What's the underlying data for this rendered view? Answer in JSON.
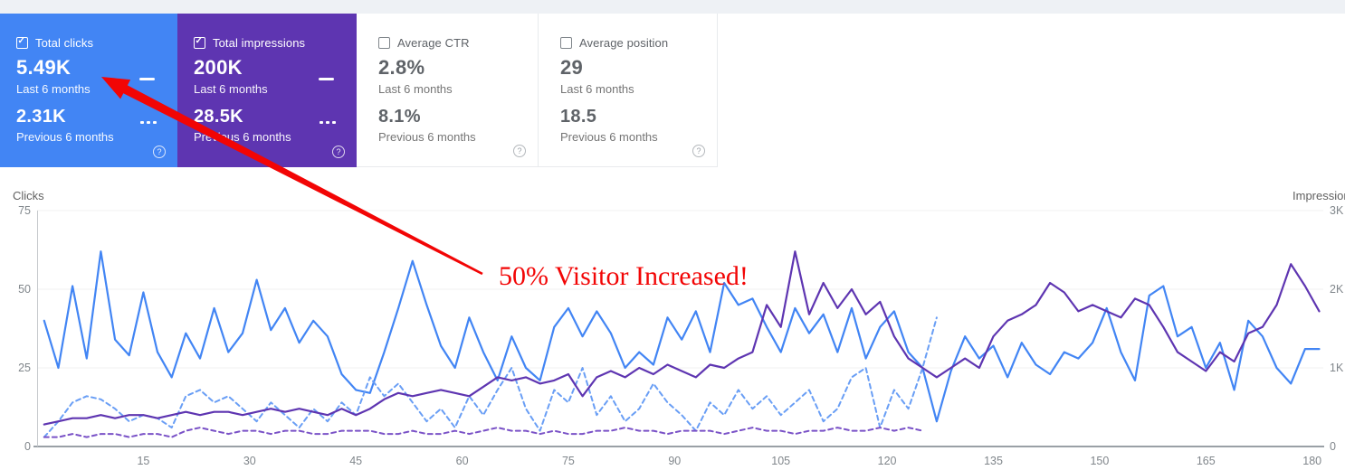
{
  "cards": [
    {
      "label": "Total clicks",
      "value_current": "5.49K",
      "caption_current": "Last 6 months",
      "value_previous": "2.31K",
      "caption_previous": "Previous 6 months",
      "selected": true,
      "bg": "#4285f4",
      "help_label": "?"
    },
    {
      "label": "Total impressions",
      "value_current": "200K",
      "caption_current": "Last 6 months",
      "value_previous": "28.5K",
      "caption_previous": "Previous 6 months",
      "selected": true,
      "bg": "#5e35b1",
      "help_label": "?"
    },
    {
      "label": "Average CTR",
      "value_current": "2.8%",
      "caption_current": "Last 6 months",
      "value_previous": "8.1%",
      "caption_previous": "Previous 6 months",
      "selected": false,
      "bg": "#ffffff",
      "help_label": "?"
    },
    {
      "label": "Average position",
      "value_current": "29",
      "caption_current": "Last 6 months",
      "value_previous": "18.5",
      "caption_previous": "Previous 6 months",
      "selected": false,
      "bg": "#ffffff",
      "help_label": "?"
    }
  ],
  "annotation": {
    "text": "50% Visitor Increased!",
    "color": "#f20505"
  },
  "chart_data": {
    "type": "line",
    "title": "",
    "grid": true,
    "x_axis": {
      "start": 1,
      "step": 2,
      "ticks": [
        15,
        30,
        45,
        60,
        75,
        90,
        105,
        120,
        135,
        150,
        165,
        180
      ]
    },
    "left_axis": {
      "label": "Clicks",
      "range": [
        0,
        75
      ],
      "ticks": [
        0,
        25,
        50,
        75
      ],
      "tick_labels": [
        "0",
        "25",
        "50",
        "75"
      ]
    },
    "right_axis": {
      "label": "Impressions",
      "range": [
        0,
        3000
      ],
      "ticks": [
        0,
        1000,
        2000,
        3000
      ],
      "tick_labels": [
        "0",
        "1K",
        "2K",
        "3K"
      ]
    },
    "series": [
      {
        "id": "clicks-current",
        "name": "Clicks - Last 6 months",
        "axis": "left",
        "style": "solid",
        "color": "#4285f4",
        "values": [
          40,
          25,
          51,
          28,
          62,
          34,
          29,
          49,
          30,
          22,
          36,
          28,
          44,
          30,
          36,
          53,
          37,
          44,
          33,
          40,
          35,
          23,
          18,
          17,
          30,
          44,
          59,
          45,
          32,
          25,
          41,
          30,
          21,
          35,
          25,
          21,
          38,
          44,
          35,
          43,
          36,
          25,
          30,
          26,
          41,
          34,
          43,
          30,
          52,
          45,
          47,
          38,
          30,
          44,
          36,
          42,
          30,
          44,
          28,
          38,
          43,
          30,
          25,
          8,
          24,
          35,
          28,
          32,
          22,
          33,
          26,
          23,
          30,
          28,
          33,
          44,
          30,
          21,
          48,
          51,
          35,
          38,
          25,
          33,
          18,
          40,
          35,
          25,
          20,
          31,
          31
        ]
      },
      {
        "id": "clicks-previous",
        "name": "Clicks - Previous 6 months",
        "axis": "left",
        "style": "dashed",
        "color": "#699ef5",
        "values": [
          3,
          8,
          14,
          16,
          15,
          12,
          8,
          10,
          9,
          6,
          16,
          18,
          14,
          16,
          12,
          8,
          14,
          10,
          6,
          12,
          8,
          14,
          10,
          22,
          16,
          20,
          14,
          8,
          12,
          6,
          16,
          10,
          18,
          25,
          12,
          5,
          18,
          14,
          25,
          10,
          16,
          8,
          12,
          20,
          14,
          10,
          5,
          14,
          10,
          18,
          12,
          16,
          10,
          14,
          18,
          8,
          12,
          22,
          25,
          6,
          18,
          12,
          25,
          41
        ]
      },
      {
        "id": "impressions-current",
        "name": "Impressions - Last 6 months",
        "axis": "right",
        "style": "solid",
        "color": "#5e35b1",
        "values": [
          280,
          320,
          360,
          360,
          400,
          360,
          400,
          400,
          360,
          400,
          440,
          400,
          440,
          440,
          400,
          440,
          480,
          440,
          480,
          440,
          400,
          480,
          400,
          480,
          600,
          680,
          640,
          680,
          720,
          680,
          640,
          760,
          880,
          840,
          880,
          800,
          840,
          920,
          640,
          880,
          960,
          880,
          1000,
          920,
          1040,
          960,
          880,
          1040,
          1000,
          1120,
          1200,
          1800,
          1520,
          2480,
          1680,
          2080,
          1760,
          2000,
          1680,
          1840,
          1400,
          1120,
          1000,
          880,
          1000,
          1120,
          1000,
          1400,
          1600,
          1680,
          1800,
          2080,
          1960,
          1720,
          1800,
          1720,
          1640,
          1880,
          1800,
          1520,
          1200,
          1080,
          960,
          1200,
          1080,
          1440,
          1520,
          1800,
          2320,
          2040,
          1720
        ]
      },
      {
        "id": "impressions-previous",
        "name": "Impressions - Previous 6 months",
        "axis": "right",
        "style": "dashed",
        "color": "#7a52c7",
        "values": [
          120,
          120,
          160,
          120,
          160,
          160,
          120,
          160,
          160,
          120,
          200,
          240,
          200,
          160,
          200,
          200,
          160,
          200,
          200,
          160,
          160,
          200,
          200,
          200,
          160,
          160,
          200,
          160,
          160,
          200,
          160,
          200,
          240,
          200,
          200,
          160,
          200,
          160,
          160,
          200,
          200,
          240,
          200,
          200,
          160,
          200,
          200,
          200,
          160,
          200,
          240,
          200,
          200,
          160,
          200,
          200,
          240,
          200,
          200,
          240,
          200,
          240,
          200
        ]
      }
    ]
  }
}
